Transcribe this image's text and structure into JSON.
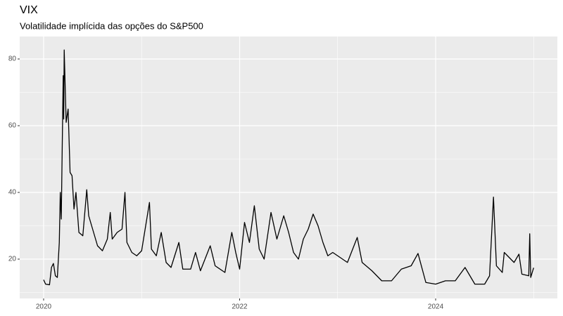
{
  "chart_data": {
    "type": "line",
    "title": "VIX",
    "subtitle": "Volatilidade implícida das opções do S&P500",
    "x": [
      2020.0,
      2020.02,
      2020.06,
      2020.08,
      2020.1,
      2020.12,
      2020.14,
      2020.16,
      2020.17,
      2020.18,
      2020.19,
      2020.2,
      2020.205,
      2020.21,
      2020.23,
      2020.25,
      2020.27,
      2020.29,
      2020.31,
      2020.33,
      2020.36,
      2020.4,
      2020.44,
      2020.46,
      2020.5,
      2020.55,
      2020.6,
      2020.65,
      2020.68,
      2020.7,
      2020.75,
      2020.8,
      2020.83,
      2020.85,
      2020.9,
      2020.95,
      2021.0,
      2021.08,
      2021.1,
      2021.15,
      2021.2,
      2021.25,
      2021.3,
      2021.38,
      2021.42,
      2021.5,
      2021.55,
      2021.6,
      2021.7,
      2021.75,
      2021.85,
      2021.92,
      2021.96,
      2022.0,
      2022.05,
      2022.1,
      2022.15,
      2022.2,
      2022.25,
      2022.32,
      2022.38,
      2022.45,
      2022.5,
      2022.55,
      2022.6,
      2022.65,
      2022.7,
      2022.75,
      2022.8,
      2022.85,
      2022.9,
      2022.95,
      2023.0,
      2023.1,
      2023.2,
      2023.25,
      2023.35,
      2023.45,
      2023.55,
      2023.65,
      2023.75,
      2023.82,
      2023.9,
      2024.0,
      2024.1,
      2024.2,
      2024.3,
      2024.4,
      2024.5,
      2024.55,
      2024.59,
      2024.62,
      2024.68,
      2024.7,
      2024.8,
      2024.85,
      2024.88,
      2024.95,
      2024.96,
      2024.97,
      2025.0
    ],
    "values": [
      13.8,
      12.5,
      12.3,
      17.5,
      18.7,
      15,
      14.5,
      25,
      40,
      32,
      54,
      75,
      62,
      82.7,
      61,
      65,
      46,
      45,
      35,
      40,
      28,
      27,
      40.8,
      33,
      29,
      24,
      22.5,
      26,
      34,
      26,
      28,
      29,
      40,
      25,
      22,
      21,
      22.5,
      37,
      23,
      21,
      28,
      19,
      17.5,
      25,
      17,
      17,
      22,
      16.5,
      24,
      18,
      16,
      28,
      22,
      17,
      31,
      25,
      36,
      23,
      20,
      34,
      26,
      33,
      28,
      22,
      20,
      26,
      29,
      33.5,
      30,
      25,
      21,
      22,
      21,
      19,
      26.5,
      19,
      16.5,
      13.5,
      13.5,
      17,
      18,
      21.7,
      13,
      12.5,
      13.5,
      13.5,
      17.5,
      12.5,
      12.5,
      15,
      38.6,
      18,
      16,
      22,
      19,
      21.5,
      15.5,
      15,
      27.6,
      14.5,
      17.4
    ],
    "color": "#000000",
    "xlim": [
      2019.756,
      2025.242
    ],
    "ylim": [
      8.21,
      86.74
    ],
    "xticks": [
      2020,
      2022,
      2024
    ],
    "yticks": [
      20,
      40,
      60,
      80
    ],
    "grid": true
  }
}
